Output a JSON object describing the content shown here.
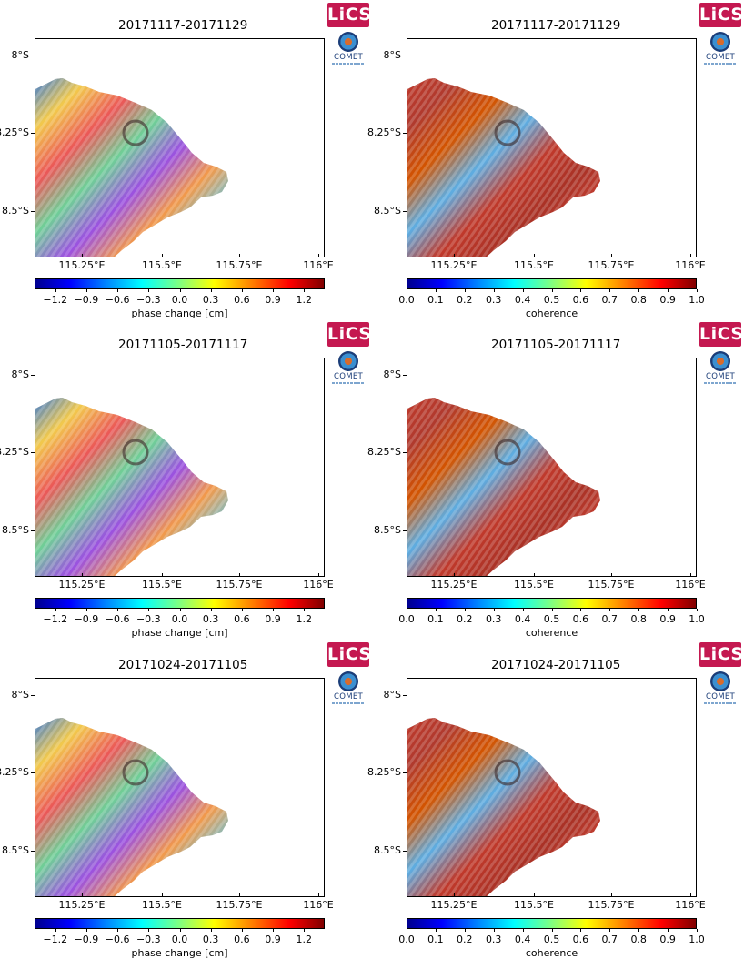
{
  "logos": {
    "lics": "LiCS",
    "comet": "COMET"
  },
  "panels": [
    {
      "title": "20171117-20171129",
      "kind": "phase"
    },
    {
      "title": "20171117-20171129",
      "kind": "coherence"
    },
    {
      "title": "20171105-20171117",
      "kind": "phase"
    },
    {
      "title": "20171105-20171117",
      "kind": "coherence"
    },
    {
      "title": "20171024-20171105",
      "kind": "phase"
    },
    {
      "title": "20171024-20171105",
      "kind": "coherence"
    }
  ],
  "axes": {
    "y_ticks": [
      "8°S",
      "8.25°S",
      "8.5°S"
    ],
    "x_ticks": [
      "115.25°E",
      "115.5°E",
      "115.75°E",
      "116°E"
    ]
  },
  "colorbars": {
    "phase": {
      "label": "phase change [cm]",
      "ticks": [
        "−1.2",
        "−0.9",
        "−0.6",
        "−0.3",
        "0.0",
        "0.3",
        "0.6",
        "0.9",
        "1.2"
      ],
      "range": [
        -1.4,
        1.4
      ]
    },
    "coherence": {
      "label": "coherence",
      "ticks": [
        "0.0",
        "0.1",
        "0.2",
        "0.3",
        "0.4",
        "0.5",
        "0.6",
        "0.7",
        "0.8",
        "0.9",
        "1.0"
      ],
      "range": [
        0.0,
        1.0
      ]
    }
  }
}
